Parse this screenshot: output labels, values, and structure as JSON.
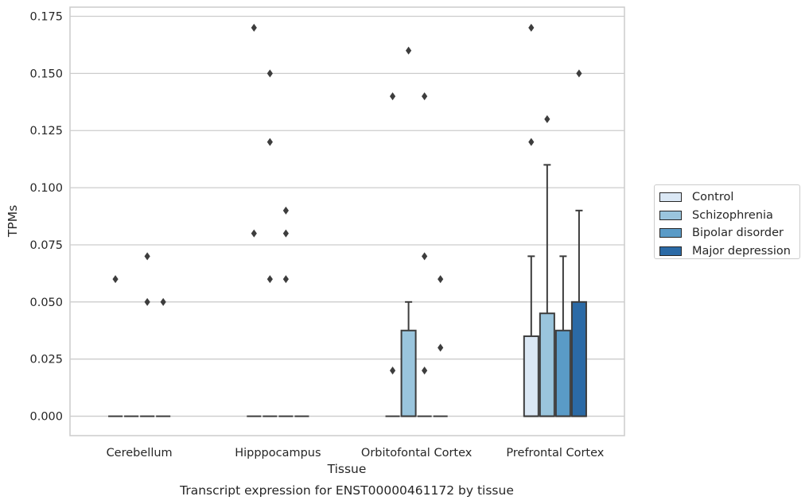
{
  "chart_data": {
    "type": "box",
    "title": "Transcript expression for ENST00000461172 by tissue",
    "xlabel": "Tissue",
    "ylabel": "TPMs",
    "ylim": [
      -0.0085,
      0.179
    ],
    "yticks": [
      0,
      0.025,
      0.05,
      0.075,
      0.1,
      0.125,
      0.15,
      0.175
    ],
    "ytick_labels": [
      "0.000",
      "0.025",
      "0.050",
      "0.075",
      "0.100",
      "0.125",
      "0.150",
      "0.175"
    ],
    "grid": "horizontal",
    "legend_position": "right",
    "categories": [
      "Cerebellum",
      "Hipppocampus",
      "Orbitofontal Cortex",
      "Prefrontal Cortex"
    ],
    "series": [
      {
        "name": "Control",
        "color": "#dbe8f5",
        "boxes": [
          {
            "q1": 0,
            "median": 0,
            "q3": 0,
            "whisker_low": 0,
            "whisker_high": 0,
            "outliers": [
              0.06
            ]
          },
          {
            "q1": 0,
            "median": 0,
            "q3": 0,
            "whisker_low": 0,
            "whisker_high": 0,
            "outliers": [
              0.08,
              0.17
            ]
          },
          {
            "q1": 0,
            "median": 0,
            "q3": 0,
            "whisker_low": 0,
            "whisker_high": 0,
            "outliers": [
              0.02,
              0.14
            ]
          },
          {
            "q1": 0,
            "median": 0,
            "q3": 0.035,
            "whisker_low": 0,
            "whisker_high": 0.07,
            "outliers": [
              0.12,
              0.17
            ]
          }
        ]
      },
      {
        "name": "Schizophrenia",
        "color": "#9ac5dd",
        "boxes": [
          {
            "q1": 0,
            "median": 0,
            "q3": 0,
            "whisker_low": 0,
            "whisker_high": 0,
            "outliers": []
          },
          {
            "q1": 0,
            "median": 0,
            "q3": 0,
            "whisker_low": 0,
            "whisker_high": 0,
            "outliers": [
              0.06,
              0.12,
              0.15
            ]
          },
          {
            "q1": 0,
            "median": 0,
            "q3": 0.0375,
            "whisker_low": 0,
            "whisker_high": 0.05,
            "outliers": [
              0.16
            ]
          },
          {
            "q1": 0,
            "median": 0,
            "q3": 0.045,
            "whisker_low": 0,
            "whisker_high": 0.11,
            "outliers": [
              0.13
            ]
          }
        ]
      },
      {
        "name": "Bipolar disorder",
        "color": "#5a9bc7",
        "boxes": [
          {
            "q1": 0,
            "median": 0,
            "q3": 0,
            "whisker_low": 0,
            "whisker_high": 0,
            "outliers": [
              0.05,
              0.07
            ]
          },
          {
            "q1": 0,
            "median": 0,
            "q3": 0,
            "whisker_low": 0,
            "whisker_high": 0,
            "outliers": [
              0.06,
              0.08,
              0.09
            ]
          },
          {
            "q1": 0,
            "median": 0,
            "q3": 0,
            "whisker_low": 0,
            "whisker_high": 0,
            "outliers": [
              0.02,
              0.07,
              0.14
            ]
          },
          {
            "q1": 0,
            "median": 0,
            "q3": 0.0375,
            "whisker_low": 0,
            "whisker_high": 0.07,
            "outliers": []
          }
        ]
      },
      {
        "name": "Major depression",
        "color": "#2b6aa6",
        "boxes": [
          {
            "q1": 0,
            "median": 0,
            "q3": 0,
            "whisker_low": 0,
            "whisker_high": 0,
            "outliers": [
              0.05
            ]
          },
          {
            "q1": 0,
            "median": 0,
            "q3": 0,
            "whisker_low": 0,
            "whisker_high": 0,
            "outliers": []
          },
          {
            "q1": 0,
            "median": 0,
            "q3": 0,
            "whisker_low": 0,
            "whisker_high": 0,
            "outliers": [
              0.03,
              0.06
            ]
          },
          {
            "q1": 0,
            "median": 0,
            "q3": 0.05,
            "whisker_low": 0,
            "whisker_high": 0.09,
            "outliers": [
              0.15
            ]
          }
        ]
      }
    ]
  }
}
